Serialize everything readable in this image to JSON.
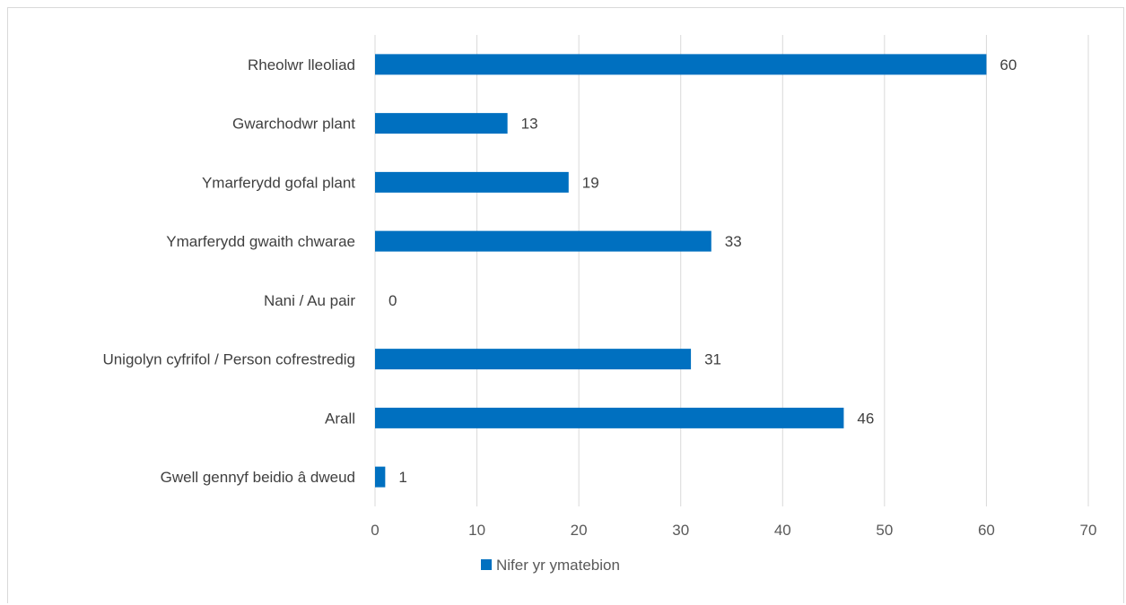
{
  "chart_data": {
    "type": "bar",
    "orientation": "horizontal",
    "categories": [
      "Rheolwr lleoliad",
      "Gwarchodwr plant",
      "Ymarferydd gofal plant",
      "Ymarferydd gwaith chwarae",
      "Nani / Au pair",
      "Unigolyn cyfrifol / Person cofrestredig",
      "Arall",
      "Gwell gennyf beidio â dweud"
    ],
    "series": [
      {
        "name": "Nifer yr ymatebion",
        "values": [
          60,
          13,
          19,
          33,
          0,
          31,
          46,
          1
        ],
        "color": "#0070c0"
      }
    ],
    "xlim": [
      0,
      70
    ],
    "xticks": [
      "0",
      "10",
      "20",
      "30",
      "40",
      "50",
      "60",
      "70"
    ],
    "grid": true,
    "legend_position": "bottom",
    "data_labels": true
  }
}
